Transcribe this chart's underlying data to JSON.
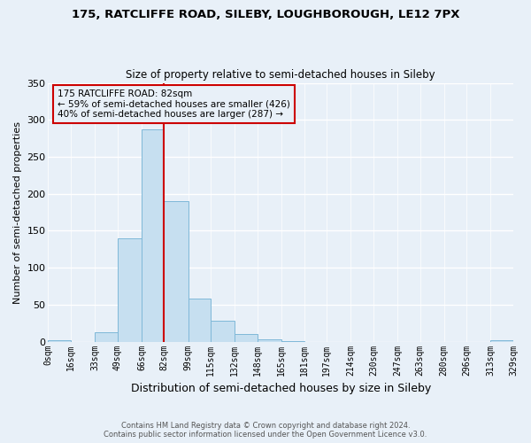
{
  "title1": "175, RATCLIFFE ROAD, SILEBY, LOUGHBOROUGH, LE12 7PX",
  "title2": "Size of property relative to semi-detached houses in Sileby",
  "xlabel": "Distribution of semi-detached houses by size in Sileby",
  "ylabel": "Number of semi-detached properties",
  "bin_edges": [
    0,
    16,
    33,
    49,
    66,
    82,
    99,
    115,
    132,
    148,
    165,
    181,
    197,
    214,
    230,
    247,
    263,
    280,
    296,
    313,
    329
  ],
  "bin_heights": [
    2,
    0,
    13,
    140,
    287,
    190,
    58,
    28,
    10,
    3,
    1,
    0,
    0,
    0,
    0,
    0,
    0,
    0,
    0,
    2
  ],
  "bar_color": "#c6dff0",
  "bar_edge_color": "#7fb8d8",
  "vline_x": 82,
  "vline_color": "#cc0000",
  "annotation_title": "175 RATCLIFFE ROAD: 82sqm",
  "annotation_line1": "← 59% of semi-detached houses are smaller (426)",
  "annotation_line2": "40% of semi-detached houses are larger (287) →",
  "annotation_box_edge": "#cc0000",
  "tick_labels": [
    "0sqm",
    "16sqm",
    "33sqm",
    "49sqm",
    "66sqm",
    "82sqm",
    "99sqm",
    "115sqm",
    "132sqm",
    "148sqm",
    "165sqm",
    "181sqm",
    "197sqm",
    "214sqm",
    "230sqm",
    "247sqm",
    "263sqm",
    "280sqm",
    "296sqm",
    "313sqm",
    "329sqm"
  ],
  "ylim": [
    0,
    350
  ],
  "yticks": [
    0,
    50,
    100,
    150,
    200,
    250,
    300,
    350
  ],
  "footer1": "Contains HM Land Registry data © Crown copyright and database right 2024.",
  "footer2": "Contains public sector information licensed under the Open Government Licence v3.0.",
  "bg_color": "#e8f0f8",
  "grid_color": "#ffffff"
}
